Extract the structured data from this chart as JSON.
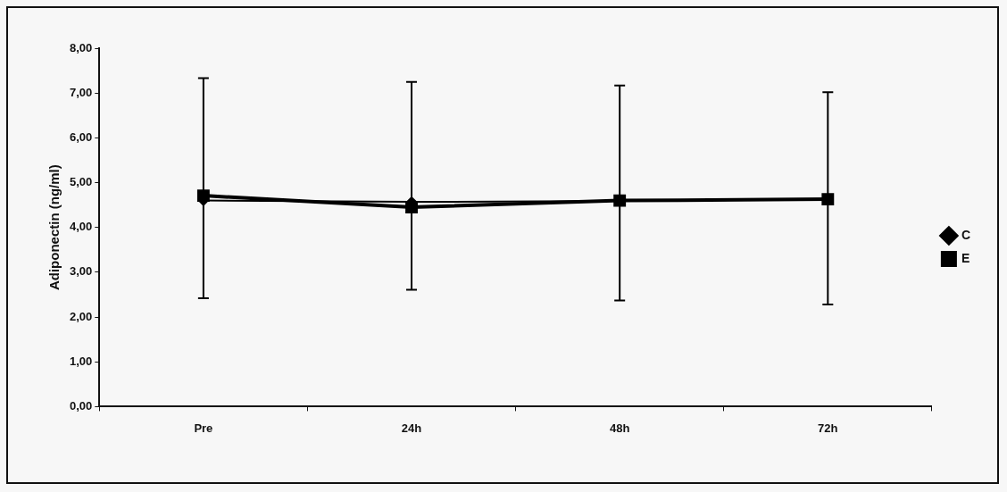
{
  "chart_data": {
    "type": "line",
    "ylabel": "Adiponectin (ng/ml)",
    "categories": [
      "Pre",
      "24h",
      "48h",
      "72h"
    ],
    "series": [
      {
        "name": "C",
        "color": "#000000",
        "marker": "diamond",
        "values": [
          4.6,
          4.57,
          4.59,
          4.63
        ],
        "errors": [
          [
            2.42,
            7.33
          ],
          [
            2.61,
            7.25
          ],
          [
            2.37,
            7.17
          ],
          [
            2.28,
            7.02
          ]
        ]
      },
      {
        "name": "E",
        "color": "#000000",
        "marker": "square",
        "values": [
          4.71,
          4.45,
          4.6,
          4.63
        ]
      }
    ],
    "ylim": [
      0,
      8
    ],
    "yticks": [
      {
        "value": 0,
        "label": "0,00"
      },
      {
        "value": 1,
        "label": "1,00"
      },
      {
        "value": 2,
        "label": "2,00"
      },
      {
        "value": 3,
        "label": "3,00"
      },
      {
        "value": 4,
        "label": "4,00"
      },
      {
        "value": 5,
        "label": "5,00"
      },
      {
        "value": 6,
        "label": "6,00"
      },
      {
        "value": 7,
        "label": "7,00"
      },
      {
        "value": 8,
        "label": "8,00"
      }
    ],
    "grid": false,
    "legend": "right",
    "line_style": "solid"
  }
}
